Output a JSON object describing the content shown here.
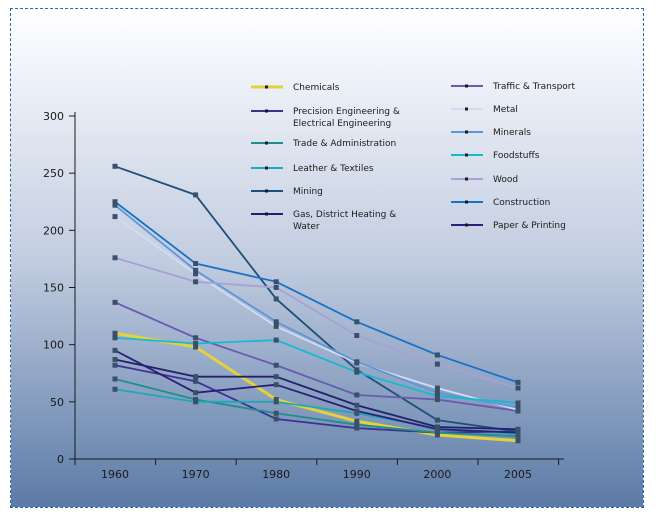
{
  "chart_data": {
    "type": "line",
    "title": "",
    "xlabel": "",
    "ylabel": "",
    "x": [
      "1960",
      "1970",
      "1980",
      "1990",
      "2000",
      "2005"
    ],
    "yticks": [
      "0",
      "50",
      "100",
      "150",
      "200",
      "250",
      "300"
    ],
    "ylim": [
      0,
      300
    ],
    "grid": false,
    "legend_position": "top-right",
    "series": [
      {
        "name": "Chemicals",
        "color": "#e3d23a",
        "values": [
          110,
          98,
          52,
          33,
          21,
          16
        ]
      },
      {
        "name": "Precision Engineering & Electrical Engineering",
        "color": "#3f2f9a",
        "values": [
          82,
          68,
          35,
          27,
          23,
          24
        ]
      },
      {
        "name": "Trade & Administration",
        "color": "#1e8f8c",
        "values": [
          70,
          52,
          40,
          30,
          23,
          20
        ]
      },
      {
        "name": "Leather & Textiles",
        "color": "#1ea7b5",
        "values": [
          61,
          50,
          50,
          40,
          27,
          22
        ]
      },
      {
        "name": "Mining",
        "color": "#1e4f7a",
        "values": [
          256,
          231,
          140,
          78,
          34,
          24
        ]
      },
      {
        "name": "Gas, District Heating & Water",
        "color": "#22206a",
        "values": [
          87,
          72,
          72,
          47,
          28,
          26
        ]
      },
      {
        "name": "Traffic & Transport",
        "color": "#6a5ab0",
        "values": [
          137,
          106,
          82,
          56,
          52,
          42
        ]
      },
      {
        "name": "Metal",
        "color": "#d2dcf0",
        "values": [
          212,
          162,
          116,
          84,
          62,
          43
        ]
      },
      {
        "name": "Minerals",
        "color": "#5f95d9",
        "values": [
          222,
          165,
          120,
          85,
          58,
          45
        ]
      },
      {
        "name": "Foodstuffs",
        "color": "#18b8d0",
        "values": [
          106,
          101,
          104,
          76,
          55,
          49
        ]
      },
      {
        "name": "Wood",
        "color": "#a8a0d6",
        "values": [
          176,
          155,
          150,
          108,
          83,
          62
        ]
      },
      {
        "name": "Construction",
        "color": "#1873c8",
        "values": [
          225,
          171,
          155,
          120,
          91,
          67
        ]
      },
      {
        "name": "Paper & Printing",
        "color": "#2c1f7a",
        "values": [
          95,
          58,
          65,
          42,
          26,
          23
        ]
      }
    ]
  }
}
